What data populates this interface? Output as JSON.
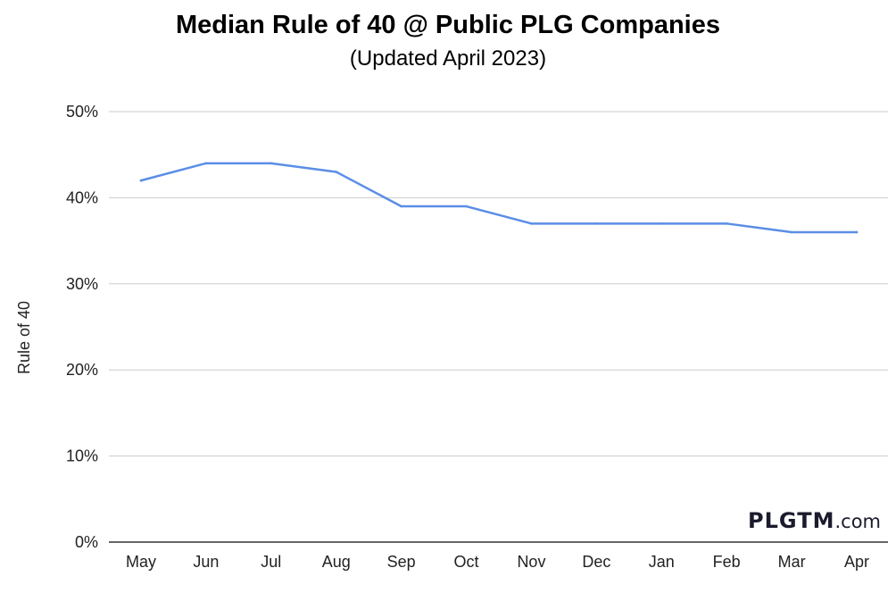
{
  "chart_data": {
    "type": "line",
    "title": "Median Rule of 40 @ Public PLG Companies",
    "subtitle": "(Updated April 2023)",
    "ylabel": "Rule of 40",
    "xlabel": "",
    "categories": [
      "May",
      "Jun",
      "Jul",
      "Aug",
      "Sep",
      "Oct",
      "Nov",
      "Dec",
      "Jan",
      "Feb",
      "Mar",
      "Apr"
    ],
    "series": [
      {
        "values": [
          42,
          44,
          44,
          43,
          39,
          39,
          37,
          37,
          37,
          37,
          36,
          36
        ],
        "color": "#5b8ee6"
      }
    ],
    "yticks": [
      "0%",
      "10%",
      "20%",
      "30%",
      "40%",
      "50%"
    ],
    "ylim": [
      0,
      50
    ],
    "grid": true,
    "legend": "none"
  },
  "watermark": {
    "bold": "PLGTM",
    "light": ".com"
  }
}
